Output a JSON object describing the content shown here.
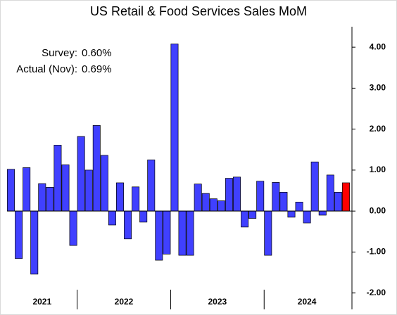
{
  "chart_data": {
    "type": "bar",
    "title": "US Retail & Food Services Sales MoM",
    "annotations": [
      {
        "label": "Survey:",
        "value": "0.60%"
      },
      {
        "label": "Actual (Nov):",
        "value": "0.69%"
      }
    ],
    "categories": [
      null,
      null,
      null,
      null,
      null,
      null,
      null,
      null,
      null,
      null,
      null,
      null,
      null,
      null,
      null,
      null,
      null,
      null,
      null,
      null,
      null,
      null,
      null,
      null,
      null,
      null,
      null,
      null,
      null,
      null,
      null,
      null,
      null,
      null,
      null,
      null,
      null,
      null,
      null,
      null,
      null,
      null,
      null,
      null
    ],
    "groups": [
      {
        "label": "2021",
        "span": 9
      },
      {
        "label": "2022",
        "span": 12
      },
      {
        "label": "2023",
        "span": 12
      },
      {
        "label": "2024",
        "span": 11
      }
    ],
    "values": [
      1.02,
      -1.16,
      1.06,
      -1.54,
      0.67,
      0.58,
      1.61,
      1.13,
      -0.84,
      1.82,
      1.0,
      2.09,
      1.36,
      -0.34,
      0.69,
      -0.68,
      0.59,
      -0.27,
      1.25,
      -1.2,
      -1.05,
      4.08,
      -1.08,
      -1.08,
      0.66,
      0.43,
      0.3,
      0.25,
      0.8,
      0.83,
      -0.39,
      -0.18,
      0.73,
      -1.08,
      0.7,
      0.46,
      -0.15,
      0.22,
      -0.29,
      1.2,
      -0.1,
      0.88,
      0.46,
      0.69
    ],
    "colors": [
      "#4040ff",
      "#4040ff",
      "#4040ff",
      "#4040ff",
      "#4040ff",
      "#4040ff",
      "#4040ff",
      "#4040ff",
      "#4040ff",
      "#4040ff",
      "#4040ff",
      "#4040ff",
      "#4040ff",
      "#4040ff",
      "#4040ff",
      "#4040ff",
      "#4040ff",
      "#4040ff",
      "#4040ff",
      "#4040ff",
      "#4040ff",
      "#4040ff",
      "#4040ff",
      "#4040ff",
      "#4040ff",
      "#4040ff",
      "#4040ff",
      "#4040ff",
      "#4040ff",
      "#4040ff",
      "#4040ff",
      "#4040ff",
      "#4040ff",
      "#4040ff",
      "#4040ff",
      "#4040ff",
      "#4040ff",
      "#4040ff",
      "#4040ff",
      "#4040ff",
      "#4040ff",
      "#4040ff",
      "#4040ff",
      "#ff0000"
    ],
    "ylim": [
      -2.4,
      4.5
    ],
    "yticks": [
      {
        "value": 4,
        "label": "4.00"
      },
      {
        "value": 3,
        "label": "3.00"
      },
      {
        "value": 2,
        "label": "2.00"
      },
      {
        "value": 1,
        "label": "1.00"
      },
      {
        "value": 0,
        "label": "0.00"
      },
      {
        "value": -1,
        "label": "-1.00"
      },
      {
        "value": -2,
        "label": "-2.00"
      }
    ],
    "grid": false
  }
}
